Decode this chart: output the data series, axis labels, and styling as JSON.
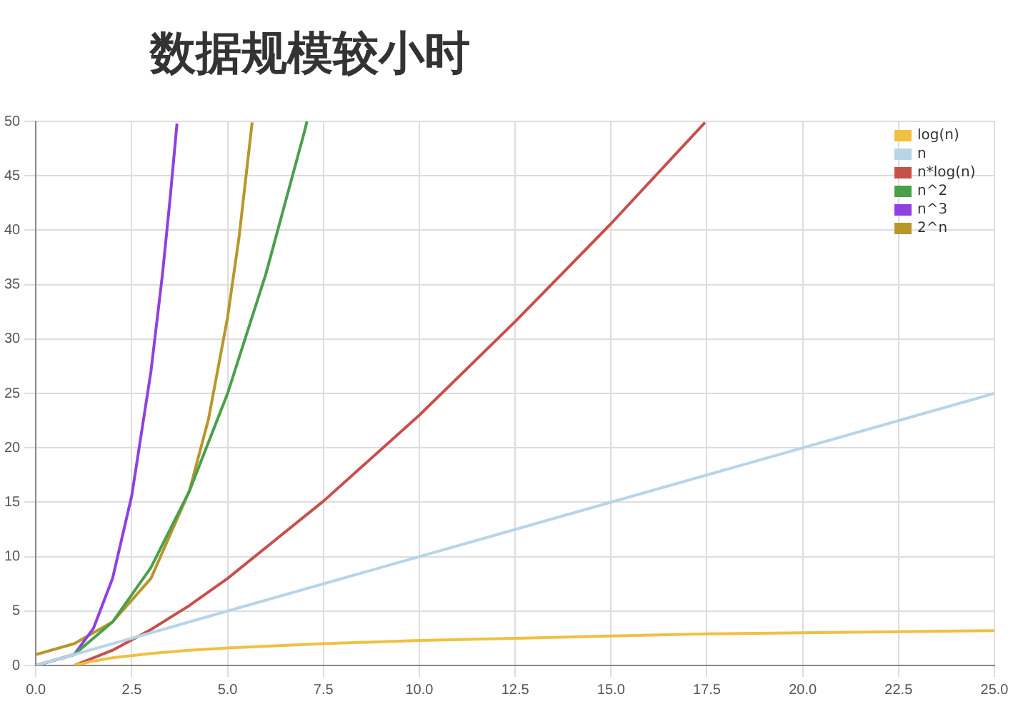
{
  "chart_data": {
    "type": "line",
    "title": "数据规模较小时",
    "xlim": [
      0,
      25
    ],
    "xticks": [
      {
        "value": 0,
        "label": "0.0"
      },
      2.5,
      {
        "value": 5,
        "label": "5.0"
      },
      7.5,
      {
        "value": 10,
        "label": "10.0"
      },
      12.5,
      {
        "value": 15,
        "label": "15.0"
      },
      17.5,
      {
        "value": 20,
        "label": "20.0"
      },
      22.5,
      {
        "value": 25,
        "label": "25.0"
      }
    ],
    "ylim": [
      0,
      50
    ],
    "yticks": [
      0,
      5,
      10,
      15,
      20,
      25,
      30,
      35,
      40,
      45,
      50
    ],
    "grid": true,
    "legend": "top right",
    "marker": "none",
    "line_style": "solid",
    "series": [
      {
        "name": "log(n)",
        "color": "#f0c040",
        "x": [
          1,
          1.5,
          2,
          3,
          4,
          5,
          7.5,
          10,
          12.5,
          15,
          17.5,
          20,
          22.5,
          25
        ],
        "values": [
          0,
          0.4,
          0.7,
          1.1,
          1.4,
          1.6,
          2.0,
          2.3,
          2.5,
          2.7,
          2.9,
          3.0,
          3.1,
          3.2
        ]
      },
      {
        "name": "n",
        "color": "#b8d4e8",
        "x": [
          0,
          25
        ],
        "values": [
          0,
          25
        ]
      },
      {
        "name": "n*log(n)",
        "color": "#c8504a",
        "x": [
          1,
          2,
          3,
          4,
          5,
          7.5,
          10,
          12.5,
          15,
          17.45
        ],
        "values": [
          0,
          1.4,
          3.3,
          5.5,
          8.0,
          15.1,
          23.0,
          31.6,
          40.6,
          49.9
        ]
      },
      {
        "name": "n^2",
        "color": "#4aa04a",
        "x": [
          0,
          1,
          2,
          3,
          4,
          5,
          6,
          7,
          7.07
        ],
        "values": [
          0,
          1,
          4,
          9,
          16,
          25,
          36,
          49,
          50
        ]
      },
      {
        "name": "n^3",
        "color": "#9040e0",
        "x": [
          0,
          1,
          1.5,
          2,
          2.5,
          3,
          3.3,
          3.5,
          3.68
        ],
        "values": [
          0,
          1,
          3.4,
          8,
          15.6,
          27,
          35.9,
          42.9,
          49.8
        ]
      },
      {
        "name": "2^n",
        "color": "#b8962a",
        "x": [
          0,
          1,
          2,
          3,
          4,
          4.5,
          5,
          5.3,
          5.64
        ],
        "values": [
          1,
          2,
          4,
          8,
          16,
          22.6,
          32,
          39.4,
          49.9
        ]
      }
    ]
  }
}
